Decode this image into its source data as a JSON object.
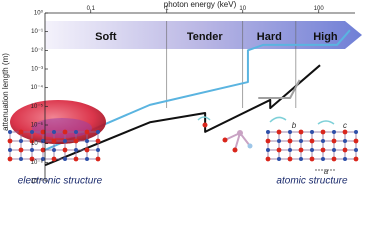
{
  "chart_data": {
    "type": "line",
    "x_label": "photon energy (keV)",
    "y_label": "attenuation length (m)",
    "xlog": true,
    "ylog": true,
    "xlim": [
      0.025,
      300
    ],
    "xticks": [
      0.1,
      1,
      10,
      100
    ],
    "ylim": [
      1e-09,
      1
    ],
    "yticks": [
      {
        "value": 1,
        "label": "10⁰"
      },
      {
        "value": 0.1,
        "label": "10⁻¹"
      },
      {
        "value": 0.01,
        "label": "10⁻²"
      },
      {
        "value": 0.001,
        "label": "10⁻³"
      },
      {
        "value": 0.0001,
        "label": "10⁻⁴"
      },
      {
        "value": 1e-05,
        "label": "10⁻⁵"
      },
      {
        "value": 1e-06,
        "label": "10⁻⁶"
      },
      {
        "value": 1e-07,
        "label": "10⁻⁷"
      },
      {
        "value": 1e-08,
        "label": "10⁻⁸"
      },
      {
        "value": 1e-09,
        "label": "10⁻⁹"
      }
    ],
    "regions": [
      {
        "label": "Soft",
        "start": 0.025
      },
      {
        "label": "Tender",
        "start": 1
      },
      {
        "label": "Hard",
        "start": 10
      },
      {
        "label": "High",
        "start": 50
      }
    ],
    "series": [
      {
        "color": "#5ab4e0",
        "x": [
          0.025,
          0.6,
          11.7,
          11.7,
          18.5,
          174,
          257
        ],
        "values": [
          4.6e-08,
          1.2e-05,
          0.0002,
          0.01,
          0.0195,
          0.0195,
          0.12
        ]
      },
      {
        "color": "#111111",
        "x": [
          0.025,
          0.6,
          3.2,
          3.2,
          23,
          23,
          104
        ],
        "values": [
          7e-09,
          1.4e-06,
          4.4e-06,
          4.3e-07,
          2.2e-05,
          8e-06,
          0.0016
        ]
      },
      {
        "color": "#a0a0a0",
        "x": [
          16,
          42,
          56
        ],
        "values": [
          2.8e-05,
          2.8e-05,
          0.00026
        ]
      }
    ],
    "annotations": [
      "electronic structure",
      "atomic structure",
      "a",
      "b",
      "c"
    ]
  }
}
